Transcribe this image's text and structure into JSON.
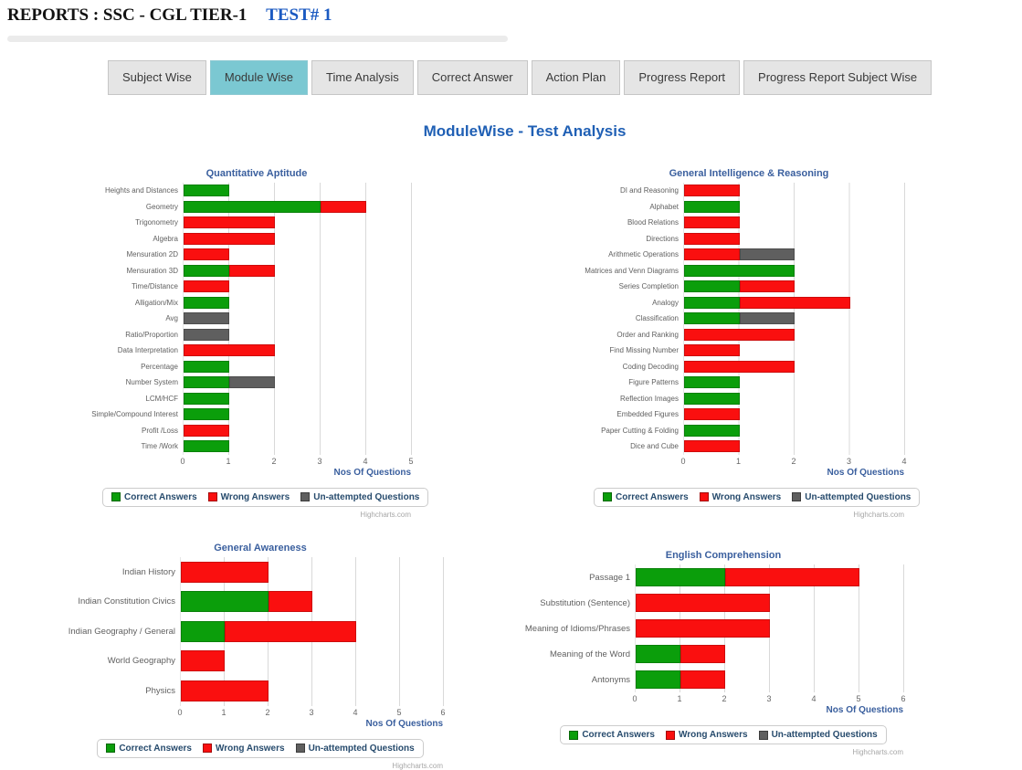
{
  "header": {
    "title": "REPORTS : SSC - CGL TIER-1",
    "test_label": "TEST# 1"
  },
  "tabs": [
    {
      "label": "Subject Wise",
      "active": false
    },
    {
      "label": "Module Wise",
      "active": true
    },
    {
      "label": "Time Analysis",
      "active": false
    },
    {
      "label": "Correct Answer",
      "active": false
    },
    {
      "label": "Action Plan",
      "active": false
    },
    {
      "label": "Progress Report",
      "active": false
    },
    {
      "label": "Progress Report Subject Wise",
      "active": false
    }
  ],
  "page_title": "ModuleWise - Test Analysis",
  "credit": "Highcharts.com",
  "colors": {
    "correct": "#0b9e0b",
    "wrong": "#fa0f0f",
    "unattempted": "#5f5f5f",
    "active_tab": "#7bc8d2",
    "page_title_blue": "#2060b5",
    "chart_title_blue": "#3a5f9e",
    "test_link_blue": "#1b5ac2"
  },
  "chart_data": [
    {
      "type": "bar",
      "title": "Quantitative Aptitude",
      "xlabel": "Nos Of Questions",
      "xlim": [
        0,
        5
      ],
      "grid": true,
      "legend_position": "bottom",
      "categories": [
        "Heights and Distances",
        "Geometry",
        "Trigonometry",
        "Algebra",
        "Mensuration 2D",
        "Mensuration 3D",
        "Time/Distance",
        "Alligation/Mix",
        "Avg",
        "Ratio/Proportion",
        "Data Interpretation",
        "Percentage",
        "Number System",
        "LCM/HCF",
        "Simple/Compound Interest",
        "Profit /Loss",
        "Time /Work"
      ],
      "series": [
        {
          "name": "Correct Answers",
          "color_key": "correct",
          "values": [
            1,
            3,
            0,
            0,
            0,
            1,
            0,
            1,
            0,
            0,
            0,
            1,
            1,
            1,
            1,
            0,
            1
          ]
        },
        {
          "name": "Wrong Answers",
          "color_key": "wrong",
          "values": [
            0,
            1,
            2,
            2,
            1,
            1,
            1,
            0,
            0,
            0,
            2,
            0,
            0,
            0,
            0,
            1,
            0
          ]
        },
        {
          "name": "Un-attempted Questions",
          "color_key": "unattempted",
          "values": [
            0,
            0,
            0,
            0,
            0,
            0,
            0,
            0,
            1,
            1,
            0,
            0,
            1,
            0,
            0,
            0,
            0
          ]
        }
      ]
    },
    {
      "type": "bar",
      "title": "General Intelligence & Reasoning",
      "xlabel": "Nos Of Questions",
      "xlim": [
        0,
        4
      ],
      "grid": true,
      "legend_position": "bottom",
      "categories": [
        "DI and Reasoning",
        "Alphabet",
        "Blood Relations",
        "Directions",
        "Arithmetic Operations",
        "Matrices and Venn Diagrams",
        "Series Completion",
        "Analogy",
        "Classification",
        "Order and Ranking",
        "Find Missing Number",
        "Coding Decoding",
        "Figure Patterns",
        "Reflection Images",
        "Embedded Figures",
        "Paper Cutting & Folding",
        "Dice and Cube"
      ],
      "series": [
        {
          "name": "Correct Answers",
          "color_key": "correct",
          "values": [
            0,
            1,
            0,
            0,
            0,
            2,
            1,
            1,
            1,
            0,
            0,
            0,
            1,
            1,
            0,
            1,
            0
          ]
        },
        {
          "name": "Wrong Answers",
          "color_key": "wrong",
          "values": [
            1,
            0,
            1,
            1,
            1,
            0,
            1,
            2,
            0,
            2,
            1,
            2,
            0,
            0,
            1,
            0,
            1
          ]
        },
        {
          "name": "Un-attempted Questions",
          "color_key": "unattempted",
          "values": [
            0,
            0,
            0,
            0,
            1,
            0,
            0,
            0,
            1,
            0,
            0,
            0,
            0,
            0,
            0,
            0,
            0
          ]
        }
      ]
    },
    {
      "type": "bar",
      "title": "General Awareness",
      "xlabel": "Nos Of Questions",
      "xlim": [
        0,
        6
      ],
      "grid": true,
      "legend_position": "bottom",
      "categories": [
        "Indian History",
        "Indian Constitution Civics",
        "Indian Geography / General",
        "World Geography",
        "Physics"
      ],
      "series": [
        {
          "name": "Correct Answers",
          "color_key": "correct",
          "values": [
            0,
            2,
            1,
            0,
            0
          ]
        },
        {
          "name": "Wrong Answers",
          "color_key": "wrong",
          "values": [
            2,
            1,
            3,
            1,
            2
          ]
        },
        {
          "name": "Un-attempted Questions",
          "color_key": "unattempted",
          "values": [
            0,
            0,
            0,
            0,
            0
          ]
        }
      ]
    },
    {
      "type": "bar",
      "title": "English Comprehension",
      "xlabel": "Nos Of Questions",
      "xlim": [
        0,
        6
      ],
      "grid": true,
      "legend_position": "bottom",
      "categories": [
        "Passage 1",
        "Substitution (Sentence)",
        "Meaning of Idioms/Phrases",
        "Meaning of the Word",
        "Antonyms"
      ],
      "series": [
        {
          "name": "Correct Answers",
          "color_key": "correct",
          "values": [
            2,
            0,
            0,
            1,
            1
          ]
        },
        {
          "name": "Wrong Answers",
          "color_key": "wrong",
          "values": [
            3,
            3,
            3,
            1,
            1
          ]
        },
        {
          "name": "Un-attempted Questions",
          "color_key": "unattempted",
          "values": [
            0,
            0,
            0,
            0,
            0
          ]
        }
      ]
    }
  ]
}
